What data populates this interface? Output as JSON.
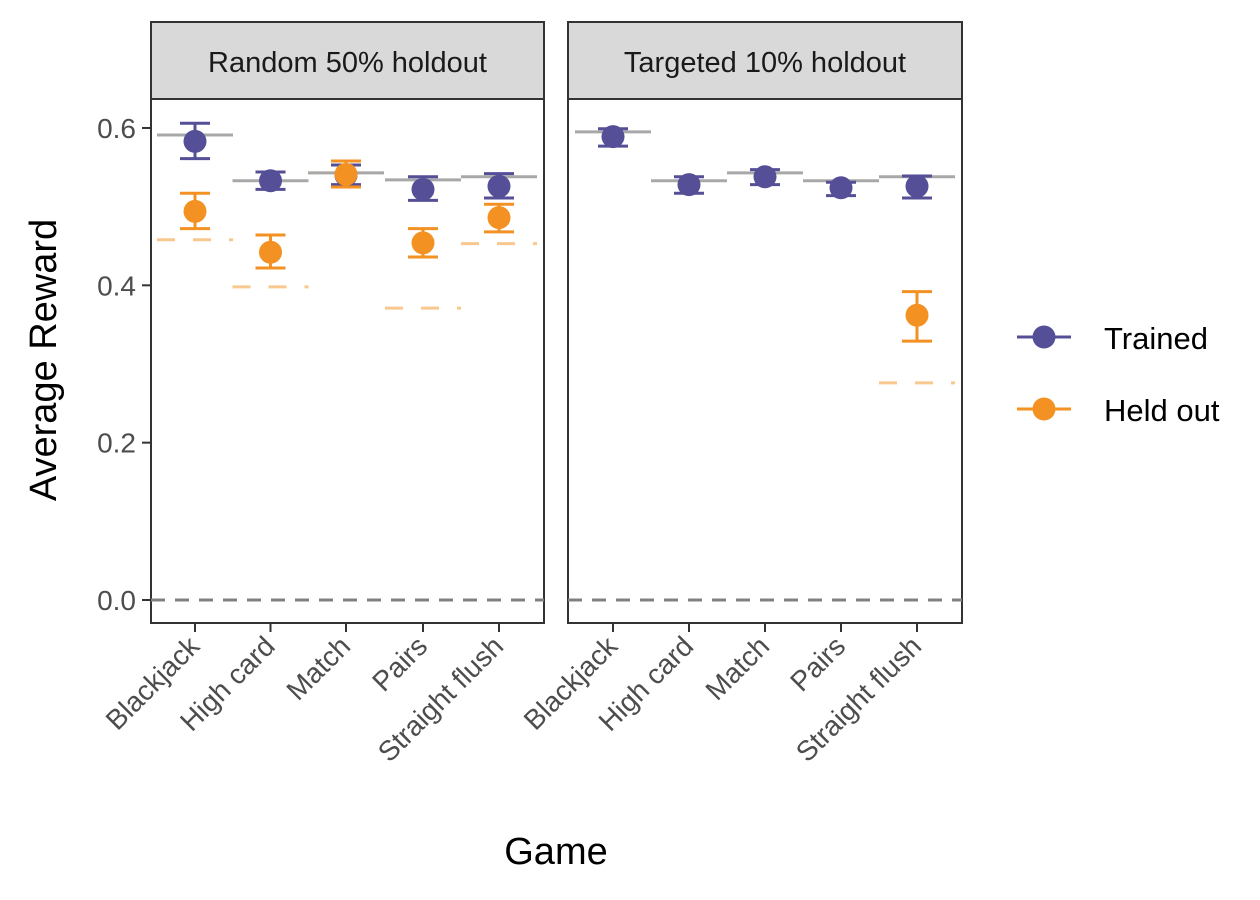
{
  "chart_data": {
    "type": "scatter",
    "ylabel": "Average Reward",
    "xlabel": "Game",
    "ylim": [
      -0.03,
      0.645
    ],
    "yticks": [
      "0.0",
      "0.2",
      "0.4",
      "0.6"
    ],
    "ytick_values": [
      0.0,
      0.2,
      0.4,
      0.6
    ],
    "grid": false,
    "legend_position": "right",
    "reference_line": {
      "y": 0.0,
      "style": "dashed",
      "color": "#808080"
    },
    "colors": {
      "Trained": "#544f96",
      "Held out": "#f39123",
      "trained_baseline": "#a8a8a8",
      "heldout_baseline": "#f8c88f"
    },
    "categories": [
      "Blackjack",
      "High card",
      "Match",
      "Pairs",
      "Straight flush"
    ],
    "legend": [
      "Trained",
      "Held out"
    ],
    "panels": [
      {
        "title": "Random 50% holdout",
        "series": [
          {
            "name": "Trained",
            "values": [
              0.583,
              0.533,
              0.54,
              0.522,
              0.526
            ],
            "lower": [
              0.561,
              0.522,
              0.528,
              0.508,
              0.511
            ],
            "upper": [
              0.606,
              0.544,
              0.553,
              0.538,
              0.542
            ],
            "baseline": [
              0.591,
              0.533,
              0.543,
              0.534,
              0.538
            ]
          },
          {
            "name": "Held out",
            "values": [
              0.494,
              0.442,
              0.541,
              0.454,
              0.486
            ],
            "lower": [
              0.472,
              0.422,
              0.525,
              0.436,
              0.468
            ],
            "upper": [
              0.517,
              0.464,
              0.558,
              0.472,
              0.503
            ],
            "baseline": [
              0.458,
              0.398,
              0.543,
              0.371,
              0.453
            ]
          }
        ]
      },
      {
        "title": "Targeted 10% holdout",
        "series": [
          {
            "name": "Trained",
            "values": [
              0.589,
              0.528,
              0.538,
              0.524,
              0.526
            ],
            "lower": [
              0.577,
              0.517,
              0.528,
              0.514,
              0.511
            ],
            "upper": [
              0.599,
              0.538,
              0.547,
              0.531,
              0.539
            ],
            "baseline": [
              0.595,
              0.533,
              0.543,
              0.533,
              0.538
            ]
          },
          {
            "name": "Held out",
            "values": [
              null,
              null,
              null,
              null,
              0.362
            ],
            "lower": [
              null,
              null,
              null,
              null,
              0.329
            ],
            "upper": [
              null,
              null,
              null,
              null,
              0.392
            ],
            "baseline": [
              null,
              null,
              null,
              null,
              0.276
            ]
          }
        ]
      }
    ]
  }
}
